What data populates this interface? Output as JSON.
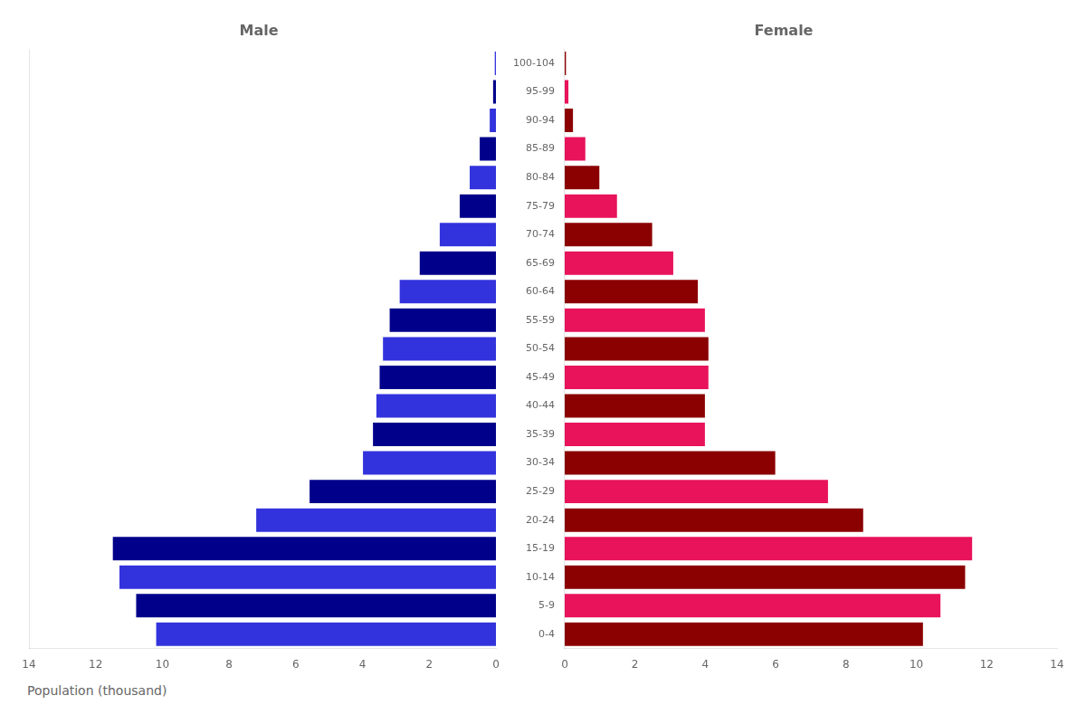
{
  "chart_data": [
    {
      "type": "bar",
      "orientation": "horizontal",
      "title": "Male",
      "xlabel": "Population (thousand)",
      "categories": [
        "100-104",
        "95-99",
        "90-94",
        "85-89",
        "80-84",
        "75-79",
        "70-74",
        "65-69",
        "60-64",
        "55-59",
        "50-54",
        "45-49",
        "40-44",
        "35-39",
        "30-34",
        "25-29",
        "20-24",
        "15-19",
        "10-14",
        "5-9",
        "0-4"
      ],
      "values": [
        0.05,
        0.1,
        0.2,
        0.5,
        0.8,
        1.1,
        1.7,
        2.3,
        2.9,
        3.2,
        3.4,
        3.5,
        3.6,
        3.7,
        4.0,
        5.6,
        7.2,
        11.5,
        11.3,
        10.8,
        10.2
      ],
      "colors": [
        "#3333DD",
        "#00008B",
        "#3333DD",
        "#00008B",
        "#3333DD",
        "#00008B",
        "#3333DD",
        "#00008B",
        "#3333DD",
        "#00008B",
        "#3333DD",
        "#00008B",
        "#3333DD",
        "#00008B",
        "#3333DD",
        "#00008B",
        "#3333DD",
        "#00008B",
        "#3333DD",
        "#00008B",
        "#3333DD"
      ],
      "xlim": [
        14,
        0
      ],
      "xticks": [
        0,
        2,
        4,
        6,
        8,
        10,
        12,
        14
      ],
      "grid": false,
      "tick_labels": "x"
    },
    {
      "type": "bar",
      "orientation": "horizontal",
      "title": "Female",
      "categories": [
        "100-104",
        "95-99",
        "90-94",
        "85-89",
        "80-84",
        "75-79",
        "70-74",
        "65-69",
        "60-64",
        "55-59",
        "50-54",
        "45-49",
        "40-44",
        "35-39",
        "30-34",
        "25-29",
        "20-24",
        "15-19",
        "10-14",
        "5-9",
        "0-4"
      ],
      "values": [
        0.05,
        0.12,
        0.25,
        0.6,
        1.0,
        1.5,
        2.5,
        3.1,
        3.8,
        4.0,
        4.1,
        4.1,
        4.0,
        4.0,
        6.0,
        7.5,
        8.5,
        11.6,
        11.4,
        10.7,
        10.2
      ],
      "colors": [
        "#8B0000",
        "#E8135B",
        "#8B0000",
        "#E8135B",
        "#8B0000",
        "#E8135B",
        "#8B0000",
        "#E8135B",
        "#8B0000",
        "#E8135B",
        "#8B0000",
        "#E8135B",
        "#8B0000",
        "#E8135B",
        "#8B0000",
        "#E8135B",
        "#8B0000",
        "#E8135B",
        "#8B0000",
        "#E8135B",
        "#8B0000"
      ],
      "xlim": [
        0,
        14
      ],
      "xticks": [
        0,
        2,
        4,
        6,
        8,
        10,
        12,
        14
      ],
      "grid": false
    }
  ]
}
